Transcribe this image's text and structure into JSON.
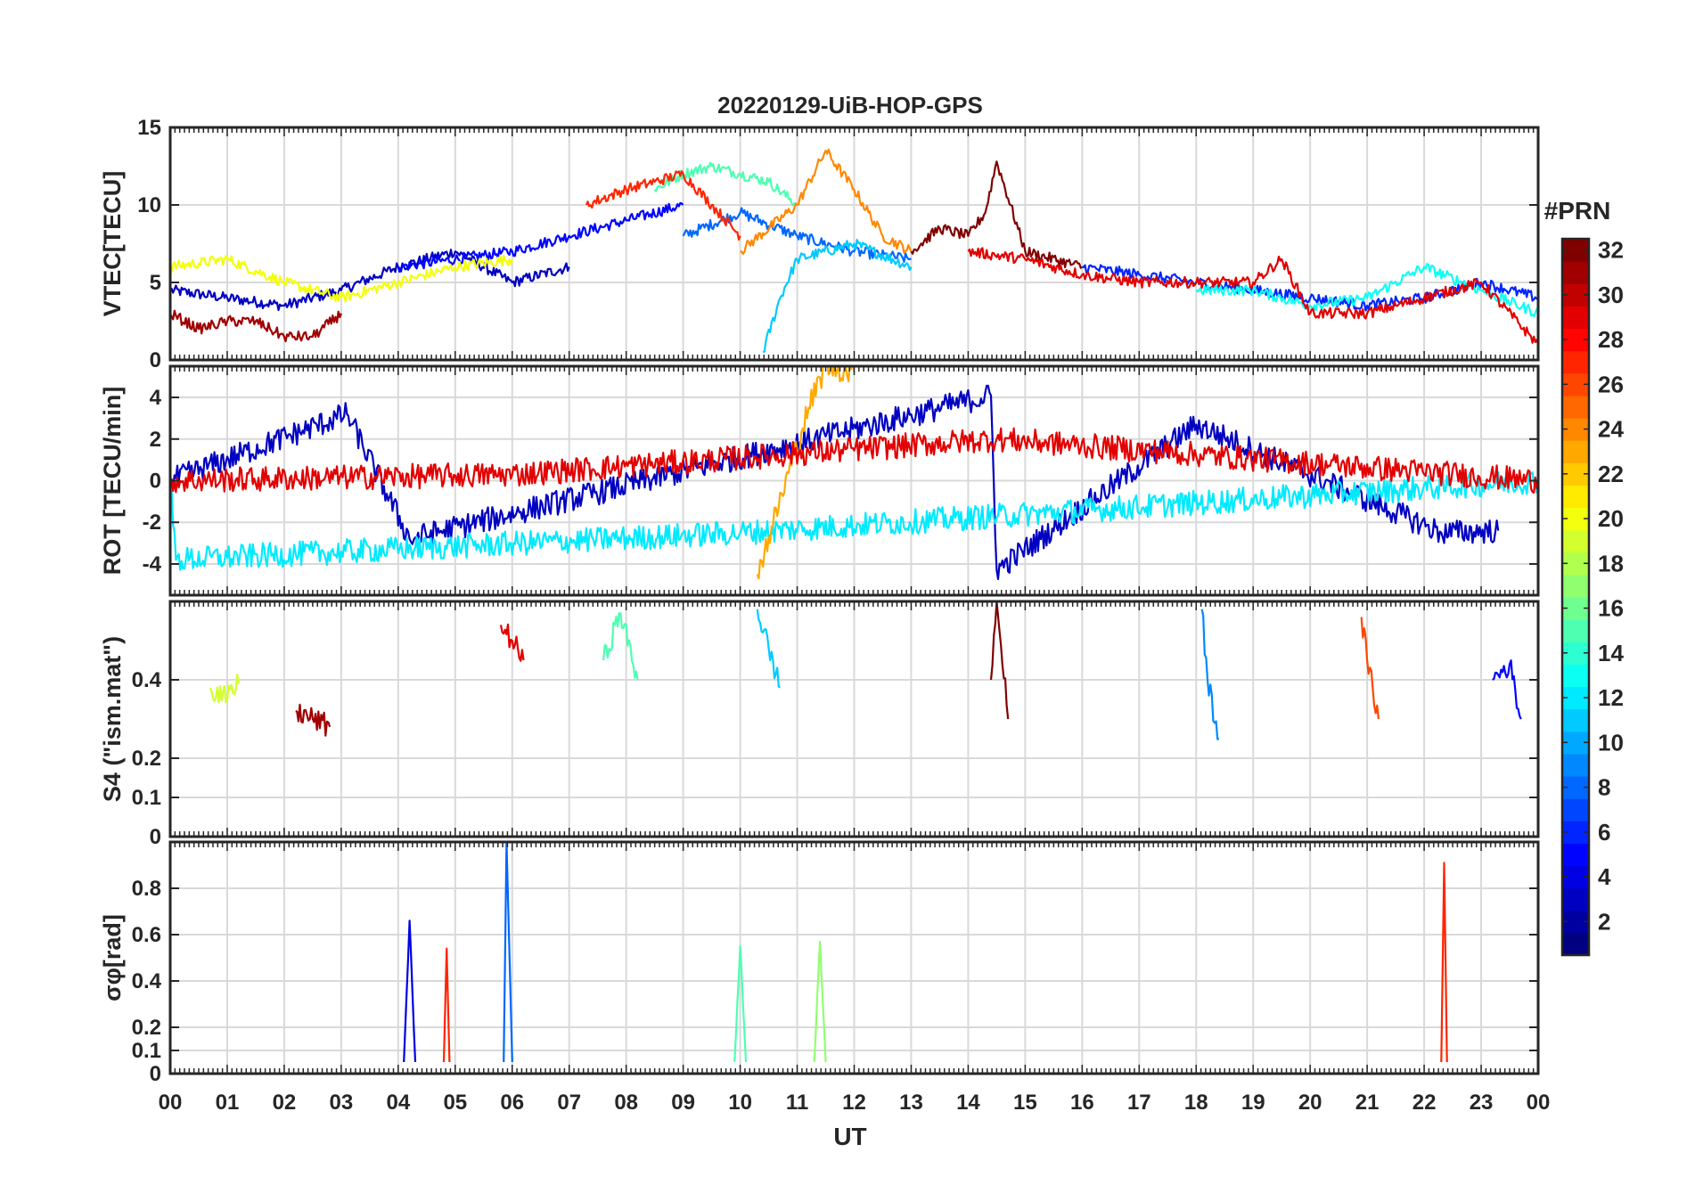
{
  "title": "20220129-UiB-HOP-GPS",
  "colorbar": {
    "label": "#PRN",
    "min": 1,
    "max": 32,
    "ticks": [
      2,
      4,
      6,
      8,
      10,
      12,
      14,
      16,
      18,
      20,
      22,
      24,
      26,
      28,
      30,
      32
    ],
    "colormap": "jet"
  },
  "chart_data": [
    {
      "type": "line",
      "panel": "vtec",
      "ylabel": "VTEC[TECU]",
      "ylim": [
        0,
        15
      ],
      "yticks": [
        0,
        5,
        10,
        15
      ],
      "xlim": [
        0,
        24
      ],
      "grid": true,
      "series": [
        {
          "prn": 3,
          "x": [
            0,
            1,
            2,
            3,
            4,
            5,
            6,
            7
          ],
          "y": [
            4.5,
            4.0,
            3.5,
            4.5,
            6.0,
            7.0,
            5.0,
            6.0
          ]
        },
        {
          "prn": 5,
          "x": [
            4,
            5,
            6,
            7,
            8,
            9
          ],
          "y": [
            6.0,
            6.5,
            7.0,
            8.0,
            9.0,
            10.0
          ]
        },
        {
          "prn": 8,
          "x": [
            9,
            10,
            11,
            12,
            13
          ],
          "y": [
            8.0,
            9.5,
            8.0,
            7.0,
            6.5
          ]
        },
        {
          "prn": 11,
          "x": [
            10.4,
            10.7,
            11,
            12,
            13
          ],
          "y": [
            0.5,
            4.0,
            6.5,
            7.5,
            6.0
          ]
        },
        {
          "prn": 15,
          "x": [
            8.5,
            9,
            9.5,
            10,
            10.5,
            11
          ],
          "y": [
            11.0,
            12.0,
            12.5,
            12.0,
            11.5,
            10.0
          ]
        },
        {
          "prn": 20,
          "x": [
            0,
            1,
            2,
            3,
            4,
            5,
            6
          ],
          "y": [
            6.0,
            6.5,
            5.0,
            4.0,
            5.0,
            6.0,
            6.5
          ]
        },
        {
          "prn": 24,
          "x": [
            10,
            11,
            11.5,
            12,
            12.5,
            13
          ],
          "y": [
            7.0,
            10.0,
            13.5,
            11.0,
            8.0,
            7.0
          ]
        },
        {
          "prn": 27,
          "x": [
            7.3,
            8,
            8.5,
            9,
            9.5,
            10
          ],
          "y": [
            10.0,
            11.0,
            11.5,
            12.0,
            10.0,
            8.0
          ]
        },
        {
          "prn": 32,
          "x": [
            13,
            13.5,
            14,
            14.3,
            14.5,
            15,
            16
          ],
          "y": [
            7.0,
            8.5,
            8.0,
            9.5,
            12.8,
            7.0,
            6.0
          ]
        },
        {
          "prn": 6,
          "x": [
            16,
            17,
            18,
            19,
            20,
            21,
            22,
            23,
            24
          ],
          "y": [
            6.0,
            5.5,
            5.0,
            4.5,
            4.0,
            3.5,
            4.0,
            5.0,
            4.0
          ]
        },
        {
          "prn": 13,
          "x": [
            18,
            19,
            20,
            21,
            22,
            23,
            24
          ],
          "y": [
            4.5,
            4.5,
            3.5,
            4.0,
            6.0,
            4.5,
            3.0
          ]
        },
        {
          "prn": 29,
          "x": [
            14,
            15,
            16,
            17,
            18,
            19,
            19.5,
            20,
            21,
            22,
            23,
            24
          ],
          "y": [
            7.0,
            6.5,
            5.5,
            5.0,
            5.0,
            5.0,
            6.5,
            3.0,
            3.0,
            4.0,
            5.0,
            1.0
          ]
        },
        {
          "prn": 31,
          "x": [
            0,
            0.5,
            1,
            1.5,
            2,
            2.5,
            3
          ],
          "y": [
            3.0,
            2.0,
            2.5,
            2.5,
            1.5,
            1.5,
            3.0
          ]
        }
      ]
    },
    {
      "type": "line",
      "panel": "rot",
      "ylabel": "ROT [TECU/min]",
      "ylim": [
        -5.5,
        5.5
      ],
      "yticks": [
        -4,
        -2,
        0,
        2,
        4
      ],
      "xlim": [
        0,
        24
      ],
      "grid": true,
      "series": [
        {
          "prn": 3,
          "x": [
            0,
            3.1,
            4.2,
            14.4,
            14.5,
            18,
            22.3,
            23.3
          ],
          "y": [
            0,
            3.2,
            -2.8,
            4.1,
            -4.3,
            2.7,
            -2.5,
            -2.4
          ]
        },
        {
          "prn": 12,
          "x": [
            0,
            0.1,
            10,
            24
          ],
          "y": [
            0,
            -3.8,
            -2.5,
            0
          ]
        },
        {
          "prn": 23,
          "x": [
            10.3,
            11.2,
            11.5,
            12
          ],
          "y": [
            -4.5,
            3.5,
            5.5,
            5.2
          ]
        },
        {
          "prn": 29,
          "x": [
            0,
            6,
            14.5,
            24
          ],
          "y": [
            0,
            0.3,
            2.0,
            0
          ]
        }
      ]
    },
    {
      "type": "line",
      "panel": "s4",
      "ylabel": "S4 (\"ism.mat\")",
      "ylim": [
        0,
        0.6
      ],
      "yticks": [
        0,
        0.1,
        0.2,
        0.4
      ],
      "xlim": [
        0,
        24
      ],
      "grid": true,
      "series": [
        {
          "prn": 19,
          "x": [
            0.7,
            1.0,
            1.2
          ],
          "y": [
            0.38,
            0.35,
            0.39
          ]
        },
        {
          "prn": 31,
          "x": [
            2.2,
            2.5,
            2.8
          ],
          "y": [
            0.32,
            0.3,
            0.28
          ]
        },
        {
          "prn": 29,
          "x": [
            5.8,
            6.0,
            6.2
          ],
          "y": [
            0.54,
            0.5,
            0.45
          ]
        },
        {
          "prn": 15,
          "x": [
            7.6,
            7.9,
            8.2
          ],
          "y": [
            0.45,
            0.57,
            0.4
          ]
        },
        {
          "prn": 11,
          "x": [
            10.3,
            10.5,
            10.7
          ],
          "y": [
            0.58,
            0.48,
            0.38
          ]
        },
        {
          "prn": 32,
          "x": [
            14.4,
            14.5,
            14.7
          ],
          "y": [
            0.4,
            0.6,
            0.3
          ]
        },
        {
          "prn": 9,
          "x": [
            18.1,
            18.2,
            18.4
          ],
          "y": [
            0.58,
            0.4,
            0.25
          ]
        },
        {
          "prn": 26,
          "x": [
            20.9,
            21.0,
            21.2
          ],
          "y": [
            0.56,
            0.45,
            0.3
          ]
        },
        {
          "prn": 5,
          "x": [
            23.2,
            23.5,
            23.7
          ],
          "y": [
            0.4,
            0.44,
            0.3
          ]
        }
      ]
    },
    {
      "type": "line",
      "panel": "sigma_phi",
      "ylabel": "σφ[rad]",
      "ylim": [
        0,
        1.0
      ],
      "yticks": [
        0,
        0.1,
        0.2,
        0.4,
        0.6,
        0.8
      ],
      "xlim": [
        0,
        24
      ],
      "grid": true,
      "series": [
        {
          "prn": 4,
          "x": [
            4.1,
            4.2,
            4.3
          ],
          "y": [
            0.05,
            0.66,
            0.05
          ]
        },
        {
          "prn": 27,
          "x": [
            4.8,
            4.85,
            4.9
          ],
          "y": [
            0.05,
            0.54,
            0.05
          ]
        },
        {
          "prn": 8,
          "x": [
            5.85,
            5.9,
            6.0
          ],
          "y": [
            0.05,
            1.0,
            0.05
          ]
        },
        {
          "prn": 15,
          "x": [
            9.9,
            10.0,
            10.1
          ],
          "y": [
            0.05,
            0.55,
            0.05
          ]
        },
        {
          "prn": 17,
          "x": [
            11.3,
            11.4,
            11.5
          ],
          "y": [
            0.05,
            0.57,
            0.05
          ]
        },
        {
          "prn": 27,
          "x": [
            22.3,
            22.35,
            22.4
          ],
          "y": [
            0.05,
            0.91,
            0.05
          ]
        }
      ]
    }
  ],
  "xaxis": {
    "label": "UT",
    "ticklabels": [
      "00",
      "01",
      "02",
      "03",
      "04",
      "05",
      "06",
      "07",
      "08",
      "09",
      "10",
      "11",
      "12",
      "13",
      "14",
      "15",
      "16",
      "17",
      "18",
      "19",
      "20",
      "21",
      "22",
      "23",
      "00"
    ]
  }
}
